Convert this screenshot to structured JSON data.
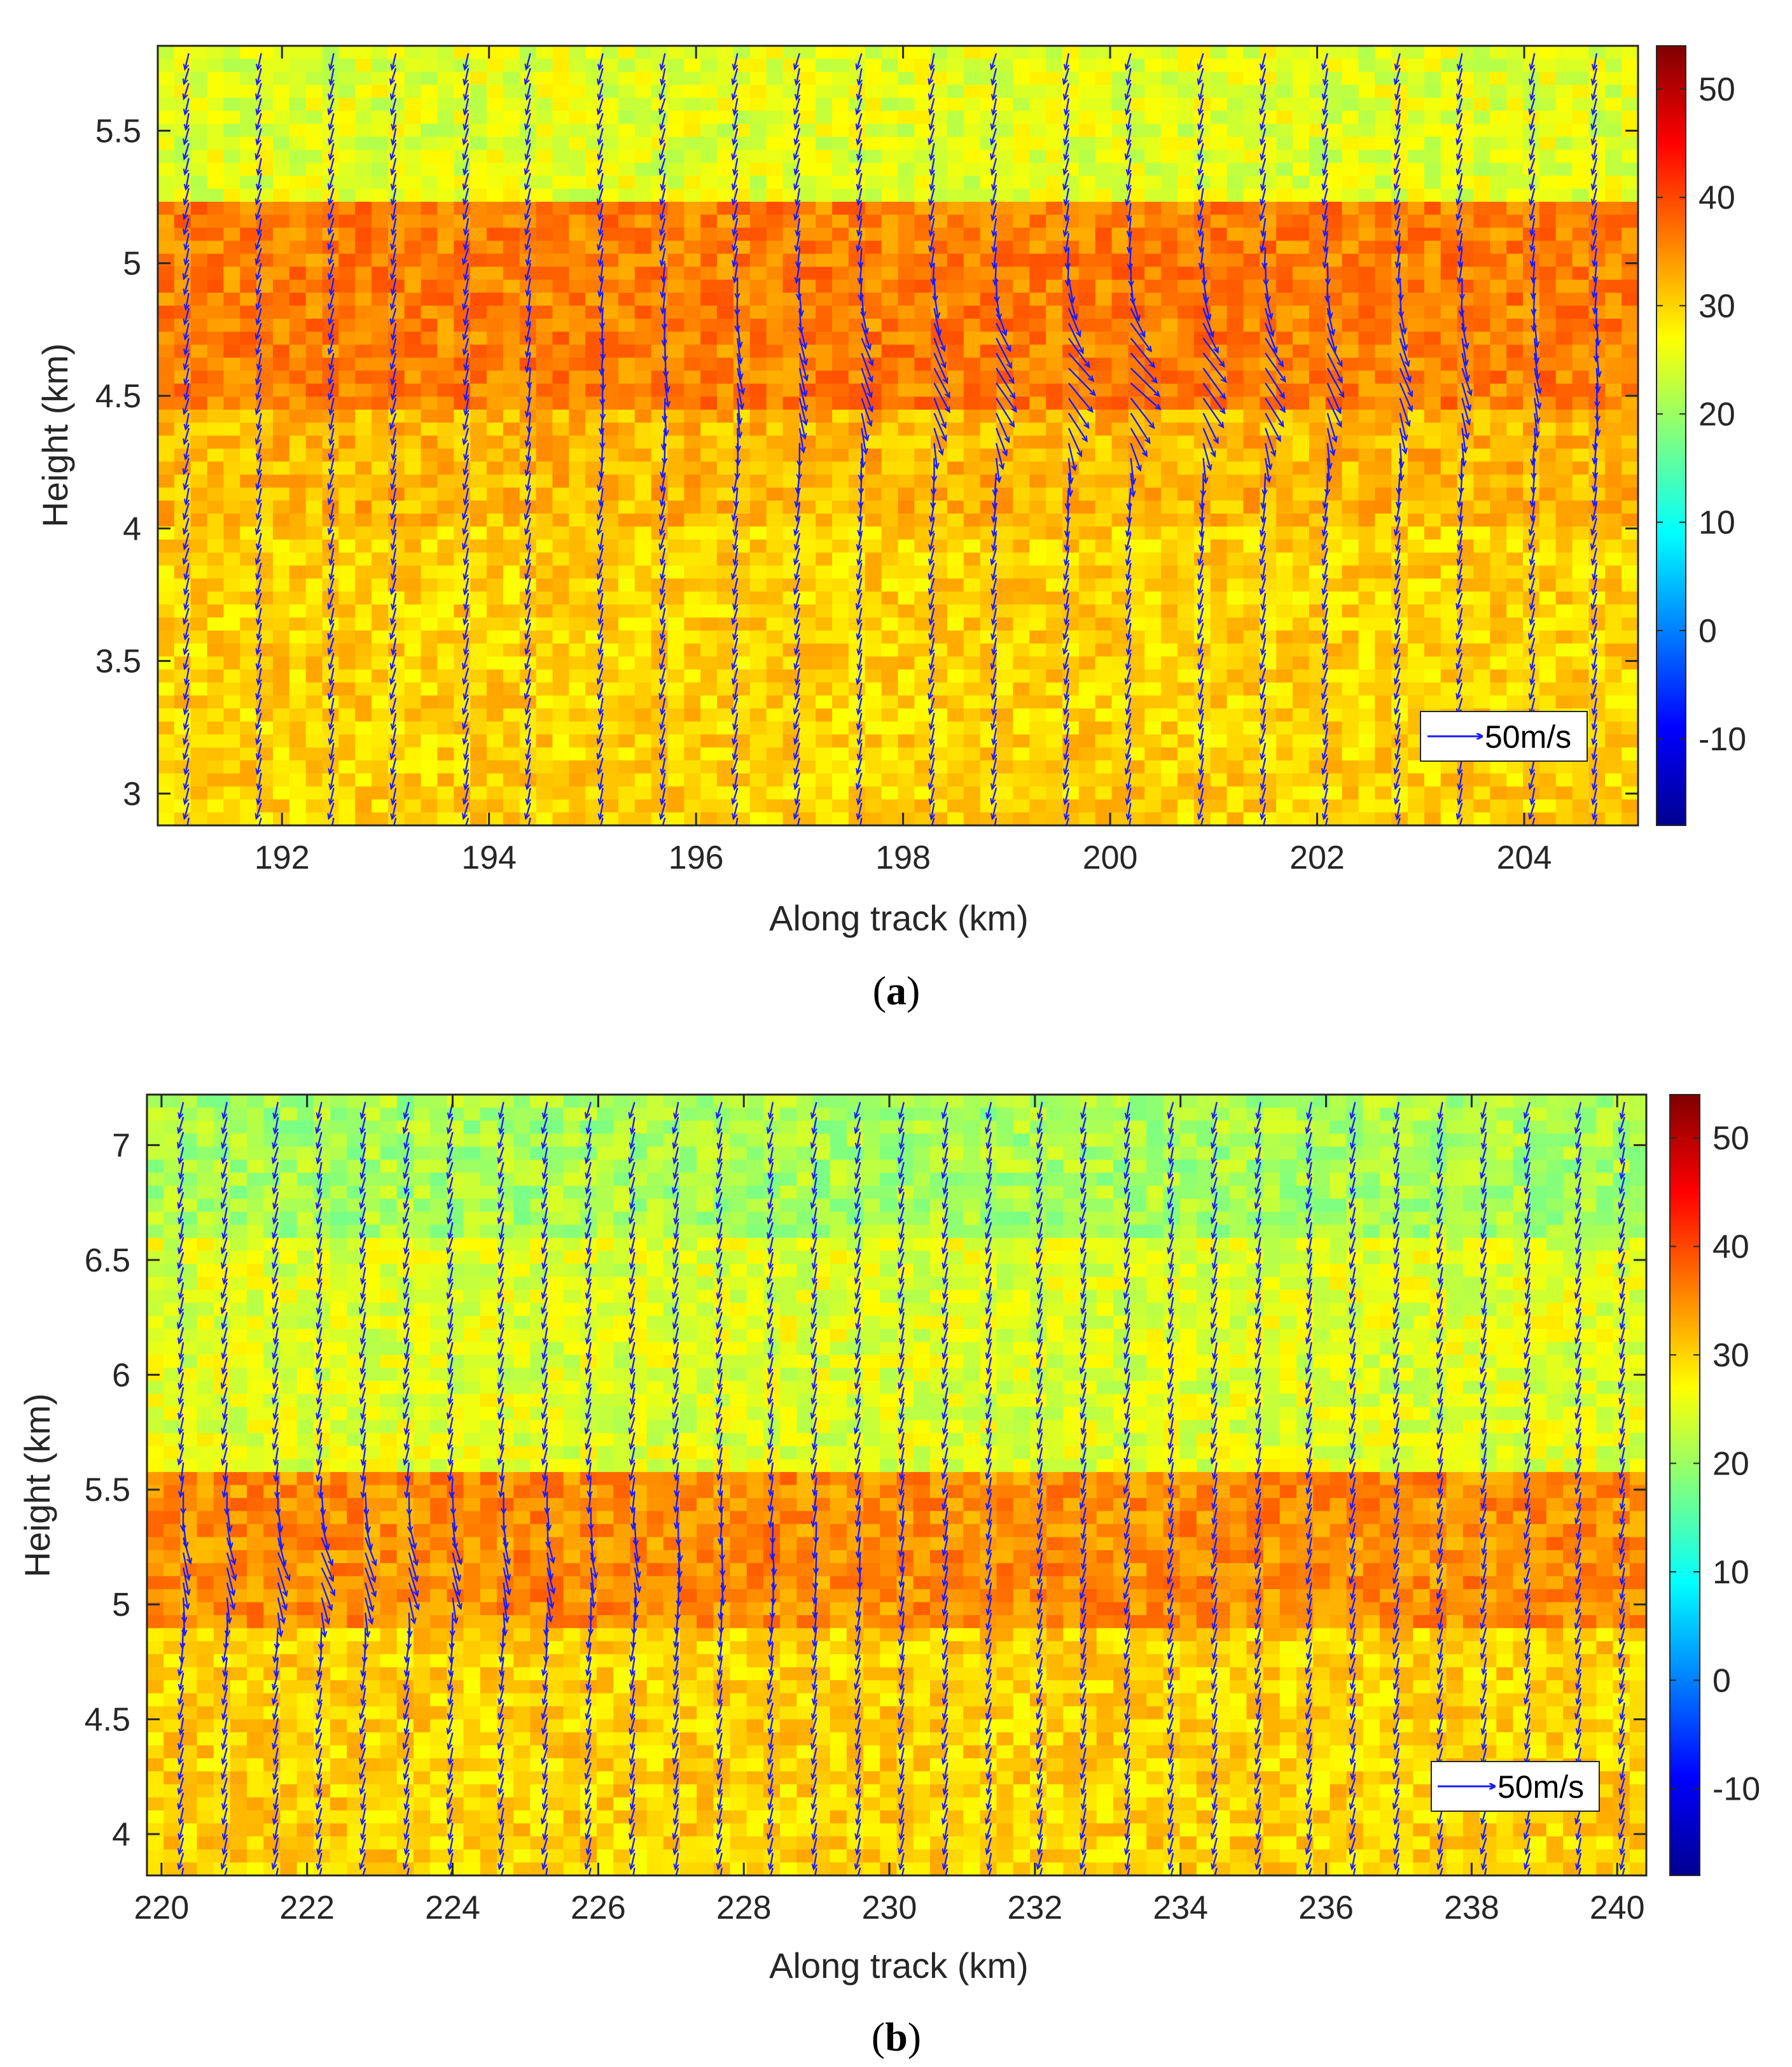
{
  "chart_data": [
    {
      "type": "heatmap",
      "overlay": "quiver",
      "panel_label": "a",
      "xlabel": "Along track (km)",
      "ylabel": "Height (km)",
      "xlim": [
        190.8,
        205.1
      ],
      "ylim": [
        2.88,
        5.82
      ],
      "xticks": [
        192,
        194,
        196,
        198,
        200,
        202,
        204
      ],
      "yticks": [
        3,
        3.5,
        4,
        4.5,
        5,
        5.5
      ],
      "colorbar": {
        "clim": [
          -18,
          54
        ],
        "ticks": [
          -10,
          0,
          10,
          20,
          30,
          40,
          50
        ],
        "colormap": "jet"
      },
      "reference_arrow": {
        "label": "50m/s",
        "value": 50
      },
      "field_bands": [
        {
          "y0": 2.88,
          "y1": 4.0,
          "value": 30
        },
        {
          "y0": 4.0,
          "y1": 4.45,
          "value": 32
        },
        {
          "y0": 4.45,
          "y1": 5.25,
          "value": 36
        },
        {
          "y0": 5.25,
          "y1": 5.82,
          "value": 25
        }
      ],
      "profile_x": [
        191.1,
        191.8,
        192.5,
        193.1,
        193.8,
        194.4,
        195.1,
        195.7,
        196.4,
        197.0,
        197.6,
        198.3,
        198.9,
        199.6,
        200.2,
        200.9,
        201.5,
        202.1,
        202.8,
        203.4,
        204.1,
        204.7
      ],
      "wind_jet": {
        "center_height": 4.6,
        "width": 0.35,
        "max_reversal": 0.8,
        "center_x": 200.2
      }
    },
    {
      "type": "heatmap",
      "overlay": "quiver",
      "panel_label": "b",
      "xlabel": "Along track (km)",
      "ylabel": "Height (km)",
      "xlim": [
        219.8,
        240.4
      ],
      "ylim": [
        3.82,
        7.22
      ],
      "xticks": [
        220,
        222,
        224,
        226,
        228,
        230,
        232,
        234,
        236,
        238,
        240
      ],
      "yticks": [
        4,
        4.5,
        5,
        5.5,
        6,
        6.5,
        7
      ],
      "colorbar": {
        "clim": [
          -18,
          54
        ],
        "ticks": [
          -10,
          0,
          10,
          20,
          30,
          40,
          50
        ],
        "colormap": "jet"
      },
      "reference_arrow": {
        "label": "50m/s",
        "value": 50
      },
      "field_bands": [
        {
          "y0": 3.82,
          "y1": 4.9,
          "value": 30
        },
        {
          "y0": 4.9,
          "y1": 5.55,
          "value": 35
        },
        {
          "y0": 5.55,
          "y1": 6.6,
          "value": 25
        },
        {
          "y0": 6.6,
          "y1": 7.22,
          "value": 21
        }
      ],
      "profile_x": [
        220.3,
        220.9,
        221.6,
        222.2,
        222.8,
        223.4,
        224.0,
        224.7,
        225.3,
        225.9,
        226.5,
        227.1,
        227.7,
        228.4,
        229.0,
        229.6,
        230.2,
        230.8,
        231.4,
        232.1,
        232.7,
        233.3,
        233.9,
        234.5,
        235.1,
        235.8,
        236.4,
        237.0,
        237.6,
        238.2,
        238.8,
        239.5,
        240.1
      ],
      "wind_jet": {
        "center_height": 5.2,
        "width": 0.3,
        "max_reversal": 0.5,
        "center_x": 222.5
      }
    }
  ]
}
